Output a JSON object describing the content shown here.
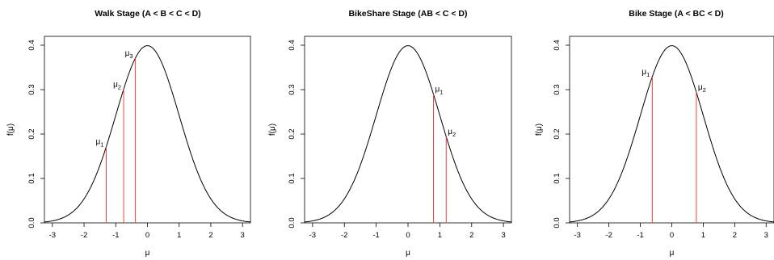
{
  "chart_data": [
    {
      "type": "line",
      "title": "Walk Stage (A < B < C < D)",
      "xlabel": "μ",
      "ylabel": "f(μ)",
      "series": [
        {
          "values_function": "standard normal density"
        }
      ],
      "xlim": [
        -3.25,
        3.25
      ],
      "ylim": [
        0,
        0.42
      ],
      "xticks": [
        -3,
        -2,
        -1,
        0,
        1,
        2,
        3
      ],
      "yticks": [
        0.0,
        0.1,
        0.2,
        0.3,
        0.4
      ],
      "xtick_labels": [
        "-3",
        "-2",
        "-1",
        "0",
        "1",
        "2",
        "3"
      ],
      "ytick_labels": [
        "0.0",
        "0.1",
        "0.2",
        "0.3",
        "0.4"
      ],
      "thresholds": [
        {
          "symbol": "μ",
          "sub": "1",
          "x": -1.3
        },
        {
          "symbol": "μ",
          "sub": "2",
          "x": -0.75
        },
        {
          "symbol": "μ",
          "sub": "3",
          "x": -0.38
        }
      ],
      "threshold_label_side": "left",
      "curve_color": "#000000",
      "threshold_color": "#ff3b3b"
    },
    {
      "type": "line",
      "title": "BikeShare Stage (AB < C < D)",
      "xlabel": "μ",
      "ylabel": "f(μ)",
      "series": [
        {
          "values_function": "standard normal density"
        }
      ],
      "xlim": [
        -3.25,
        3.25
      ],
      "ylim": [
        0,
        0.42
      ],
      "xticks": [
        -3,
        -2,
        -1,
        0,
        1,
        2,
        3
      ],
      "yticks": [
        0.0,
        0.1,
        0.2,
        0.3,
        0.4
      ],
      "xtick_labels": [
        "-3",
        "-2",
        "-1",
        "0",
        "1",
        "2",
        "3"
      ],
      "ytick_labels": [
        "0.0",
        "0.1",
        "0.2",
        "0.3",
        "0.4"
      ],
      "thresholds": [
        {
          "symbol": "μ",
          "sub": "1",
          "x": 0.8
        },
        {
          "symbol": "μ",
          "sub": "2",
          "x": 1.2
        }
      ],
      "threshold_label_side": "right",
      "curve_color": "#000000",
      "threshold_color": "#ff3b3b"
    },
    {
      "type": "line",
      "title": "Bike Stage (A < BC < D)",
      "xlabel": "μ",
      "ylabel": "f(μ)",
      "series": [
        {
          "values_function": "standard normal density"
        }
      ],
      "xlim": [
        -3.25,
        3.25
      ],
      "ylim": [
        0,
        0.42
      ],
      "xticks": [
        -3,
        -2,
        -1,
        0,
        1,
        2,
        3
      ],
      "yticks": [
        0.0,
        0.1,
        0.2,
        0.3,
        0.4
      ],
      "xtick_labels": [
        "-3",
        "-2",
        "-1",
        "0",
        "1",
        "2",
        "3"
      ],
      "ytick_labels": [
        "0.0",
        "0.1",
        "0.2",
        "0.3",
        "0.4"
      ],
      "thresholds": [
        {
          "symbol": "μ",
          "sub": "1",
          "x": -0.62
        },
        {
          "symbol": "μ",
          "sub": "2",
          "x": 0.78
        }
      ],
      "threshold_label_side": "mixed",
      "curve_color": "#000000",
      "threshold_color": "#ff3b3b"
    }
  ]
}
